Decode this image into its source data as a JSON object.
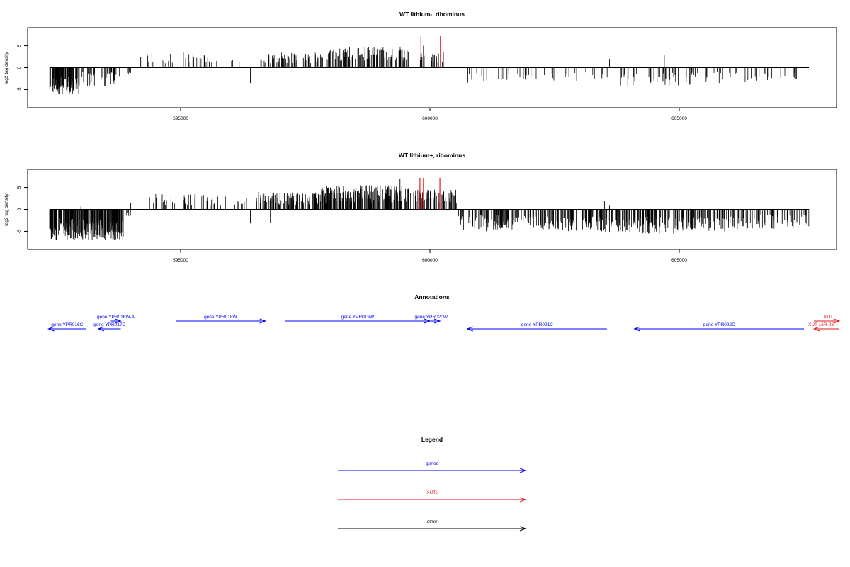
{
  "chart_data": [
    {
      "type": "bar",
      "title": "WT lithium-, ribominus",
      "ylabel": "log2 tag density",
      "xlim": [
        592000,
        608000
      ],
      "ylim": [
        -8,
        8
      ],
      "x_ticks": [
        595000,
        600000,
        605000
      ],
      "y_ticks": [
        -5,
        0,
        5
      ],
      "grid": false,
      "bar_color": "#000000",
      "highlight_color": "#e31a1c",
      "segments": [
        {
          "start": 592370,
          "end": 592970,
          "count": 110,
          "min": -6.0,
          "max": -2.0
        },
        {
          "start": 593000,
          "end": 593850,
          "count": 40,
          "min": -4.5,
          "max": -1.0
        },
        {
          "start": 593900,
          "end": 594000,
          "count": 4,
          "min": -2.0,
          "max": -0.8
        },
        {
          "start": 594300,
          "end": 595500,
          "count": 24,
          "min": 1.0,
          "max": 3.5
        },
        {
          "start": 595500,
          "end": 596300,
          "count": 12,
          "min": 1.0,
          "max": 3.0
        },
        {
          "start": 596600,
          "end": 597800,
          "count": 60,
          "min": 1.0,
          "max": 3.5
        },
        {
          "start": 597800,
          "end": 599600,
          "count": 120,
          "min": 1.5,
          "max": 4.8
        },
        {
          "start": 599800,
          "end": 600300,
          "count": 24,
          "min": 1.0,
          "max": 3.5
        },
        {
          "start": 600700,
          "end": 601500,
          "count": 14,
          "min": -3.5,
          "max": -1.0
        },
        {
          "start": 601500,
          "end": 603600,
          "count": 30,
          "min": -3.0,
          "max": -1.0
        },
        {
          "start": 603800,
          "end": 605300,
          "count": 50,
          "min": -4.2,
          "max": -1.0
        },
        {
          "start": 605300,
          "end": 607500,
          "count": 35,
          "min": -3.5,
          "max": -0.8
        }
      ],
      "points": [
        {
          "x": 594200,
          "y": 2.5
        },
        {
          "x": 596400,
          "y": -3.5
        },
        {
          "x": 599870,
          "y": 5.0
        },
        {
          "x": 600270,
          "y": 3.5
        },
        {
          "x": 603600,
          "y": 2.0
        },
        {
          "x": 604700,
          "y": 2.8
        }
      ],
      "highlights": [
        {
          "x": 599820,
          "y": 7.2
        },
        {
          "x": 600210,
          "y": 7.2
        }
      ]
    },
    {
      "type": "bar",
      "title": "WT lithium+, ribominus",
      "ylabel": "log2 tag density",
      "xlim": [
        592000,
        608000
      ],
      "ylim": [
        -8,
        8
      ],
      "x_ticks": [
        595000,
        600000,
        605000
      ],
      "y_ticks": [
        -5,
        0,
        5
      ],
      "grid": false,
      "bar_color": "#000000",
      "highlight_color": "#e31a1c",
      "segments": [
        {
          "start": 592370,
          "end": 593150,
          "count": 140,
          "min": -7.0,
          "max": -2.0
        },
        {
          "start": 593150,
          "end": 593850,
          "count": 120,
          "min": -7.0,
          "max": -2.0
        },
        {
          "start": 593900,
          "end": 594000,
          "count": 4,
          "min": -1.5,
          "max": -0.8
        },
        {
          "start": 594300,
          "end": 595500,
          "count": 30,
          "min": 1.0,
          "max": 3.5
        },
        {
          "start": 595500,
          "end": 596400,
          "count": 20,
          "min": 1.0,
          "max": 3.0
        },
        {
          "start": 596500,
          "end": 597800,
          "count": 100,
          "min": 1.0,
          "max": 4.0
        },
        {
          "start": 597800,
          "end": 599600,
          "count": 200,
          "min": 1.5,
          "max": 5.5
        },
        {
          "start": 599600,
          "end": 600550,
          "count": 60,
          "min": 1.5,
          "max": 4.5
        },
        {
          "start": 600550,
          "end": 601500,
          "count": 60,
          "min": -5.0,
          "max": -1.0
        },
        {
          "start": 601500,
          "end": 603500,
          "count": 140,
          "min": -5.0,
          "max": -1.5
        },
        {
          "start": 603500,
          "end": 605000,
          "count": 120,
          "min": -5.5,
          "max": -1.5
        },
        {
          "start": 605000,
          "end": 606500,
          "count": 100,
          "min": -5.0,
          "max": -1.5
        },
        {
          "start": 606500,
          "end": 607600,
          "count": 50,
          "min": -4.5,
          "max": -1.0
        }
      ],
      "points": [
        {
          "x": 593000,
          "y": 0.8
        },
        {
          "x": 594000,
          "y": 1.5
        },
        {
          "x": 596400,
          "y": -3.2
        },
        {
          "x": 596800,
          "y": -3.0
        },
        {
          "x": 599400,
          "y": 7.0
        },
        {
          "x": 603500,
          "y": 2.0
        },
        {
          "x": 603600,
          "y": 1.0
        }
      ],
      "highlights": [
        {
          "x": 599800,
          "y": 7.2
        },
        {
          "x": 599870,
          "y": 7.2
        },
        {
          "x": 600200,
          "y": 7.2
        }
      ]
    }
  ],
  "annotations": {
    "title": "Annotations",
    "features": [
      {
        "label": "gene YPR016W-A",
        "start": 593600,
        "end": 593800,
        "strand": "+",
        "row": 0,
        "color": "#0000ff"
      },
      {
        "label": "gene YPR016C",
        "start": 592350,
        "end": 593100,
        "strand": "-",
        "row": 1,
        "color": "#0000ff"
      },
      {
        "label": "gene YPR017C",
        "start": 593350,
        "end": 593800,
        "strand": "-",
        "row": 1,
        "color": "#0000ff"
      },
      {
        "label": "gene YPR018W",
        "start": 594900,
        "end": 596700,
        "strand": "+",
        "row": 0,
        "color": "#0000ff"
      },
      {
        "label": "gene YPR019W",
        "start": 597100,
        "end": 600000,
        "strand": "+",
        "row": 0,
        "color": "#0000ff"
      },
      {
        "label": "gene YPR020W",
        "start": 599850,
        "end": 600200,
        "strand": "+",
        "row": 0,
        "color": "#0000ff"
      },
      {
        "label": "gene YPR021C",
        "start": 600750,
        "end": 603550,
        "strand": "-",
        "row": 1,
        "color": "#0000ff"
      },
      {
        "label": "gene YPR022C",
        "start": 604100,
        "end": 607500,
        "strand": "-",
        "row": 1,
        "color": "#0000ff"
      }
    ],
    "xuts": [
      {
        "label": "XUT",
        "start": 607700,
        "end": 608400,
        "strand": "+",
        "row": 0,
        "color": "#e31a1c"
      },
      {
        "label": "XUT 16R-23",
        "start": 607700,
        "end": 608400,
        "strand": "-",
        "row": 1,
        "color": "#e31a1c"
      }
    ]
  },
  "legend": {
    "title": "Legend",
    "items": [
      {
        "label": "genes",
        "color": "#0000ff"
      },
      {
        "label": "XUTs",
        "color": "#e31a1c"
      },
      {
        "label": "other",
        "color": "#000000"
      }
    ]
  }
}
